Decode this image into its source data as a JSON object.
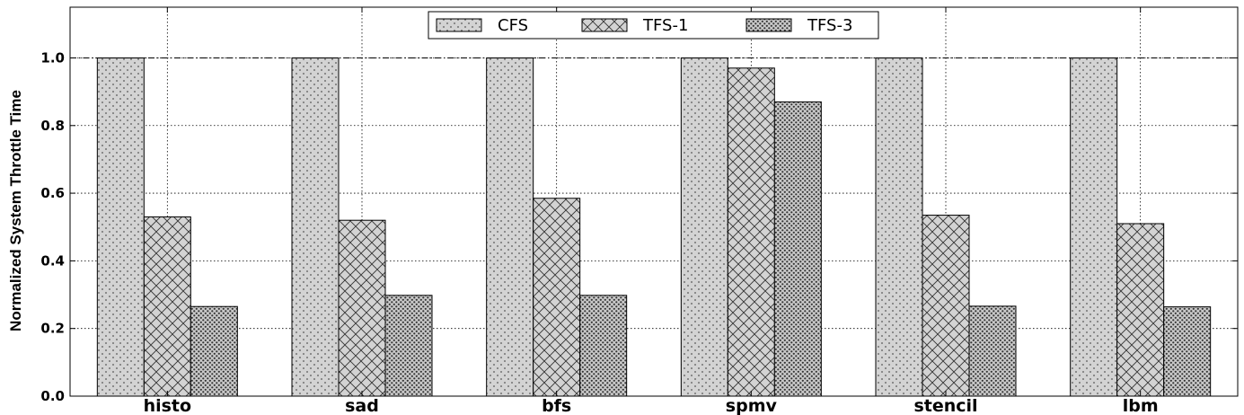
{
  "chart_data": {
    "type": "bar",
    "categories": [
      "histo",
      "sad",
      "bfs",
      "spmv",
      "stencil",
      "lbm"
    ],
    "series": [
      {
        "name": "CFS",
        "values": [
          1.0,
          1.0,
          1.0,
          1.0,
          1.0,
          1.0
        ],
        "fill": "#d3d3d3",
        "pattern": "dots"
      },
      {
        "name": "TFS-1",
        "values": [
          0.53,
          0.52,
          0.585,
          0.97,
          0.535,
          0.51
        ],
        "fill": "#d3d3d3",
        "pattern": "crosshatch"
      },
      {
        "name": "TFS-3",
        "values": [
          0.265,
          0.298,
          0.298,
          0.87,
          0.266,
          0.264
        ],
        "fill": "#d3d3d3",
        "pattern": "dense-dots"
      }
    ],
    "title": "",
    "xlabel": "",
    "ylabel": "Normalized System Throttle Time",
    "ylim": [
      0,
      1.15
    ],
    "yticks": [
      "0.0",
      "0.2",
      "0.4",
      "0.6",
      "0.8",
      "1.0"
    ],
    "reference_line": 1.0,
    "grid": true,
    "legend_position": "top-center"
  }
}
